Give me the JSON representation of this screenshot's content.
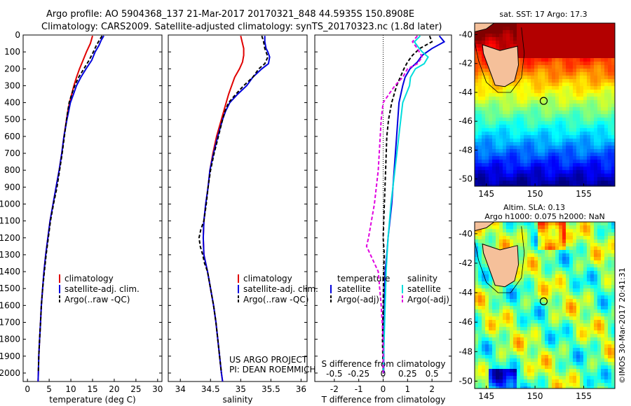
{
  "title": {
    "line1": "Argo profile: AO 5904368_137 21-Mar-2017 20170321_848 44.5935S 150.8908E",
    "line2": "Climatology: CARS2009. Satellite-adjusted climatology: synTS_20170323.nc (1.8d later)"
  },
  "side_text": "©IMOS 30-Mar-2017 20:41:31",
  "chart_data": [
    {
      "type": "line",
      "panel": "temperature",
      "xlabel": "temperature (deg C)",
      "xlim": [
        -1,
        31
      ],
      "xticks": [
        0,
        5,
        10,
        15,
        20,
        25,
        30
      ],
      "ylim": [
        2050,
        0
      ],
      "yticks": [
        0,
        100,
        200,
        300,
        400,
        500,
        600,
        700,
        800,
        900,
        1000,
        1100,
        1200,
        1300,
        1400,
        1500,
        1600,
        1700,
        1800,
        1900,
        2000
      ],
      "legend": [
        "climatology",
        "satellite-adj. clim.",
        "Argo(..raw -QC)"
      ],
      "series": [
        {
          "name": "climatology",
          "color": "#e00000",
          "depth": [
            5,
            50,
            100,
            150,
            200,
            250,
            300,
            350,
            400,
            450,
            500,
            600,
            700,
            800,
            900,
            1000,
            1100,
            1200,
            1300,
            1400,
            1500,
            1600,
            1700,
            1800,
            1900,
            2000,
            2050
          ],
          "values": [
            15.0,
            14.5,
            13.6,
            12.8,
            12.0,
            11.3,
            10.7,
            10.2,
            9.7,
            9.3,
            9.0,
            8.4,
            7.9,
            7.3,
            6.6,
            5.9,
            5.2,
            4.7,
            4.2,
            3.8,
            3.5,
            3.2,
            3.0,
            2.8,
            2.6,
            2.5,
            2.45
          ]
        },
        {
          "name": "satellite-adj. clim.",
          "color": "#0000dd",
          "depth": [
            5,
            30,
            60,
            100,
            150,
            200,
            250,
            300,
            350,
            400,
            450,
            500,
            600,
            700,
            800,
            900,
            1000,
            1100,
            1200,
            1300,
            1400,
            1500,
            1600,
            1700,
            1800,
            1900,
            2000,
            2050
          ],
          "values": [
            17.6,
            17.0,
            16.5,
            15.6,
            14.8,
            13.5,
            12.3,
            11.3,
            10.6,
            9.9,
            9.5,
            9.1,
            8.4,
            7.9,
            7.3,
            6.6,
            5.9,
            5.2,
            4.7,
            4.2,
            3.8,
            3.5,
            3.2,
            3.0,
            2.8,
            2.6,
            2.5,
            2.45
          ]
        },
        {
          "name": "Argo(..raw -QC)",
          "color": "#000000",
          "dash": true,
          "depth": [
            5,
            30,
            60,
            100,
            150,
            200,
            250,
            300,
            350,
            400,
            450,
            500,
            600,
            700,
            800,
            900,
            1000,
            1100,
            1200,
            1300,
            1400,
            1500,
            1600,
            1700,
            1800,
            1900,
            2000
          ],
          "values": [
            17.2,
            16.6,
            15.9,
            15.2,
            14.2,
            13.0,
            11.8,
            10.9,
            10.2,
            9.6,
            9.3,
            9.0,
            8.5,
            8.0,
            7.4,
            6.8,
            6.0,
            5.3,
            4.8,
            4.3,
            3.9,
            3.5,
            3.2,
            3.0,
            2.8,
            2.6,
            2.5
          ]
        }
      ]
    },
    {
      "type": "line",
      "panel": "salinity",
      "xlabel": "salinity",
      "xlim": [
        33.8,
        36.1
      ],
      "xticks": [
        34,
        34.5,
        35,
        35.5,
        36
      ],
      "ylim": [
        2050,
        0
      ],
      "legend": [
        "climatology",
        "satellite-adj. clim.",
        "Argo(..raw -QC)"
      ],
      "annotation": [
        "US ARGO PROJECT",
        "PI: DEAN ROEMMICH"
      ],
      "series": [
        {
          "name": "climatology",
          "color": "#e00000",
          "depth": [
            5,
            50,
            80,
            120,
            160,
            200,
            250,
            300,
            350,
            400,
            450,
            500,
            600,
            700,
            800,
            900,
            1000,
            1100,
            1200,
            1300,
            1400,
            1500,
            1600,
            1700,
            1800,
            1900,
            2000,
            2050
          ],
          "values": [
            35.0,
            35.03,
            35.05,
            35.05,
            35.03,
            34.98,
            34.9,
            34.85,
            34.8,
            34.76,
            34.72,
            34.68,
            34.6,
            34.54,
            34.49,
            34.46,
            34.42,
            34.39,
            34.38,
            34.39,
            34.45,
            34.5,
            34.55,
            34.59,
            34.62,
            34.65,
            34.68,
            34.7
          ]
        },
        {
          "name": "satellite-adj. clim.",
          "color": "#0000dd",
          "depth": [
            5,
            40,
            80,
            100,
            130,
            170,
            200,
            250,
            300,
            350,
            400,
            450,
            500,
            600,
            700,
            800,
            900,
            1000,
            1100,
            1200,
            1300,
            1400,
            1500,
            1600,
            1700,
            1800,
            1900,
            2000,
            2050
          ],
          "values": [
            35.4,
            35.4,
            35.42,
            35.45,
            35.48,
            35.46,
            35.35,
            35.2,
            35.1,
            34.95,
            34.82,
            34.75,
            34.7,
            34.62,
            34.55,
            34.49,
            34.46,
            34.42,
            34.39,
            34.38,
            34.39,
            34.45,
            34.5,
            34.55,
            34.59,
            34.62,
            34.65,
            34.68,
            34.7
          ]
        },
        {
          "name": "Argo(..raw -QC)",
          "color": "#000000",
          "dash": true,
          "depth": [
            5,
            40,
            80,
            100,
            130,
            170,
            200,
            250,
            300,
            350,
            400,
            450,
            500,
            600,
            700,
            800,
            900,
            1000,
            1100,
            1150,
            1200,
            1250,
            1300,
            1350,
            1400,
            1500,
            1600,
            1700,
            1800,
            1900,
            2000
          ],
          "values": [
            35.35,
            35.38,
            35.4,
            35.42,
            35.45,
            35.4,
            35.3,
            35.2,
            35.05,
            34.92,
            34.8,
            34.74,
            34.7,
            34.63,
            34.56,
            34.5,
            34.46,
            34.43,
            34.39,
            34.34,
            34.31,
            34.33,
            34.37,
            34.4,
            34.45,
            34.5,
            34.55,
            34.59,
            34.62,
            34.65,
            34.68
          ]
        }
      ]
    },
    {
      "type": "line",
      "panel": "differences",
      "xlabel": "T difference from climatology",
      "xlabel_top": "S difference from climatology",
      "xlim": [
        -2.8,
        2.8
      ],
      "xticks": [
        -2,
        -1,
        0,
        1,
        2
      ],
      "xticks_top": [
        -0.5,
        -0.25,
        0,
        0.25,
        0.5
      ],
      "ylim": [
        2050,
        0
      ],
      "legend": {
        "temperature": "temperature",
        "salinity": "salinity",
        "t_satellite": "satellite",
        "t_argo": "Argo(-adj)",
        "s_satellite": "satellite",
        "s_argo": "Argo(-adj)"
      },
      "series": [
        {
          "name": "satellite",
          "quantity": "temperature",
          "color": "#0000dd",
          "depth": [
            5,
            40,
            80,
            120,
            160,
            200,
            250,
            300,
            400,
            500,
            600,
            800,
            1000,
            1200,
            1300,
            1400,
            1600,
            1800,
            2000
          ],
          "values": [
            2.3,
            2.5,
            2.0,
            1.6,
            1.4,
            1.1,
            0.9,
            0.8,
            0.65,
            0.6,
            0.55,
            0.45,
            0.35,
            0.2,
            0.15,
            0.08,
            0.05,
            0.03,
            0.02
          ]
        },
        {
          "name": "Argo(-adj)",
          "quantity": "temperature",
          "color": "#000000",
          "dash": true,
          "depth": [
            5,
            40,
            80,
            120,
            160,
            200,
            250,
            300,
            400,
            500,
            600,
            800,
            1000,
            1200,
            1300,
            1400,
            1600,
            1800,
            2000
          ],
          "values": [
            1.9,
            2.0,
            1.5,
            1.2,
            1.0,
            0.85,
            0.7,
            0.55,
            0.35,
            0.22,
            0.15,
            0.1,
            0.05,
            0.0,
            0.05,
            0.02,
            0.0,
            -0.03,
            0.0
          ]
        },
        {
          "name": "satellite",
          "quantity": "salinity",
          "color": "#00dddd",
          "depth": [
            5,
            40,
            80,
            100,
            130,
            170,
            200,
            250,
            300,
            400,
            500,
            600,
            800,
            1000,
            1200,
            1400,
            1600,
            1800,
            2000
          ],
          "values": [
            0.38,
            0.32,
            0.37,
            0.4,
            0.46,
            0.42,
            0.33,
            0.28,
            0.27,
            0.2,
            0.18,
            0.16,
            0.12,
            0.08,
            0.05,
            0.03,
            0.02,
            0.01,
            0.0
          ]
        },
        {
          "name": "Argo(-adj)",
          "quantity": "salinity",
          "color": "#e000e0",
          "dash": true,
          "depth": [
            5,
            40,
            80,
            100,
            130,
            170,
            200,
            250,
            300,
            400,
            500,
            600,
            800,
            1000,
            1100,
            1200,
            1250,
            1300,
            1400,
            1600,
            1800,
            2000
          ],
          "values": [
            0.35,
            0.3,
            0.35,
            0.37,
            0.4,
            0.35,
            0.25,
            0.2,
            0.12,
            0.0,
            -0.02,
            -0.03,
            -0.05,
            -0.09,
            -0.12,
            -0.15,
            -0.17,
            -0.13,
            -0.05,
            -0.02,
            0.0,
            0.0
          ]
        }
      ]
    },
    {
      "type": "heatmap",
      "panel": "sst_map",
      "title": "sat. SST: 17 Argo: 17.3",
      "xticks": [
        145,
        150,
        155
      ],
      "yticks": [
        -40,
        -42,
        -44,
        -46,
        -48,
        -50
      ],
      "xlim": [
        143.8,
        158.2
      ],
      "ylim": [
        -50.5,
        -39.2
      ],
      "argo_position": {
        "lon": 150.89,
        "lat": -44.59
      }
    },
    {
      "type": "heatmap",
      "panel": "sla_map",
      "title": [
        "Altim. SLA: 0.13",
        "Argo h1000: 0.075 h2000: NaN"
      ],
      "xticks": [
        145,
        150,
        155
      ],
      "yticks": [
        -40,
        -42,
        -44,
        -46,
        -48,
        -50
      ],
      "xlim": [
        143.8,
        158.2
      ],
      "ylim": [
        -50.5,
        -39.2
      ],
      "argo_position": {
        "lon": 150.89,
        "lat": -44.59
      }
    }
  ]
}
